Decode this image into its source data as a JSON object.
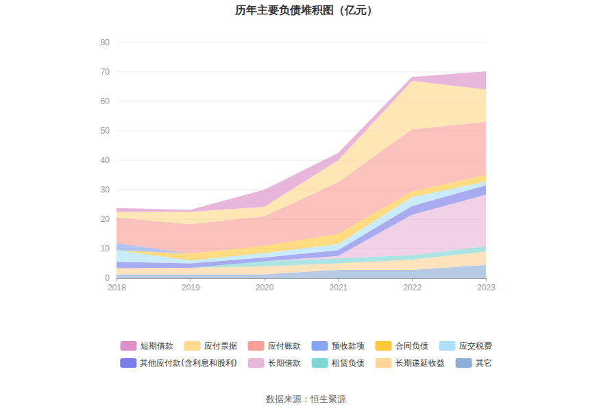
{
  "chart_data": {
    "type": "area",
    "title": "历年主要负债堆积图（亿元）",
    "source": "数据来源：恒生聚源",
    "stacked": true,
    "grid": true,
    "legend": "bottom",
    "categories": [
      "2018",
      "2019",
      "2020",
      "2021",
      "2022",
      "2023"
    ],
    "ylim": [
      0,
      80
    ],
    "yticks": [
      0,
      10,
      20,
      30,
      40,
      50,
      60,
      70,
      80
    ],
    "series": [
      {
        "name": "短期借款",
        "color": "#dd8fc8",
        "values": [
          1.3,
          0.7,
          5.8,
          2.5,
          1.3,
          6.2
        ]
      },
      {
        "name": "应付票据",
        "color": "#ffd98e",
        "values": [
          2.0,
          4.2,
          3.2,
          7.5,
          16.5,
          11.0
        ]
      },
      {
        "name": "应付账款",
        "color": "#f9a09a",
        "values": [
          8.7,
          10.0,
          10.0,
          17.5,
          21.0,
          18.0
        ]
      },
      {
        "name": "预收款项",
        "color": "#8aa4f5",
        "values": [
          2.3,
          0,
          0,
          0,
          0,
          0
        ]
      },
      {
        "name": "合同负债",
        "color": "#ffc83d",
        "values": [
          0,
          2.3,
          2.5,
          3.5,
          2.0,
          2.2
        ]
      },
      {
        "name": "应交税费",
        "color": "#aee0f9",
        "values": [
          4.0,
          1.0,
          1.5,
          2.0,
          3.0,
          1.3
        ]
      },
      {
        "name": "其他应付款(含利息和股利)",
        "color": "#7b7ee8",
        "values": [
          2.2,
          1.5,
          1.3,
          2.0,
          3.0,
          3.2
        ]
      },
      {
        "name": "长期借款",
        "color": "#e8b8dc",
        "values": [
          0,
          0,
          0,
          0.8,
          13.7,
          17.5
        ]
      },
      {
        "name": "租赁负债",
        "color": "#7fd6d6",
        "values": [
          0,
          0,
          1.7,
          1.7,
          1.5,
          1.8
        ]
      },
      {
        "name": "长期递延收益",
        "color": "#ffd49a",
        "values": [
          2.1,
          2.3,
          2.7,
          2.2,
          3.5,
          4.5
        ]
      },
      {
        "name": "其它",
        "color": "#8fadd9",
        "values": [
          1.2,
          1.2,
          1.3,
          2.8,
          2.8,
          4.5
        ]
      }
    ]
  }
}
